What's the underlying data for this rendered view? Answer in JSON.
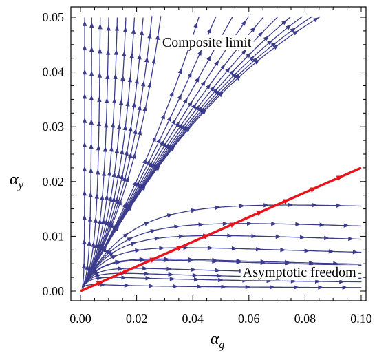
{
  "chart_data": {
    "type": "streamplot",
    "xlabel_symbol": "α",
    "xlabel_sub": "g",
    "ylabel_symbol": "α",
    "ylabel_sub": "y",
    "xlim": [
      0.0,
      0.1
    ],
    "ylim": [
      0.0,
      0.05
    ],
    "xticks": [
      "0.00",
      "0.02",
      "0.04",
      "0.06",
      "0.08",
      "0.10"
    ],
    "yticks": [
      "0.00",
      "0.01",
      "0.02",
      "0.03",
      "0.04",
      "0.05"
    ],
    "annotations": [
      {
        "text": "Composite limit",
        "x": 0.045,
        "y": 0.0455
      },
      {
        "text": "Asymptotic freedom",
        "x": 0.078,
        "y": 0.0035
      }
    ],
    "special_line": {
      "color": "#e8141c",
      "from": [
        0.0,
        0.0
      ],
      "to": [
        0.1,
        0.0225
      ]
    },
    "stream_color": "#3c3c8c",
    "colors": {
      "stream": "#3c3c8c",
      "red_line": "#e8141c"
    }
  }
}
